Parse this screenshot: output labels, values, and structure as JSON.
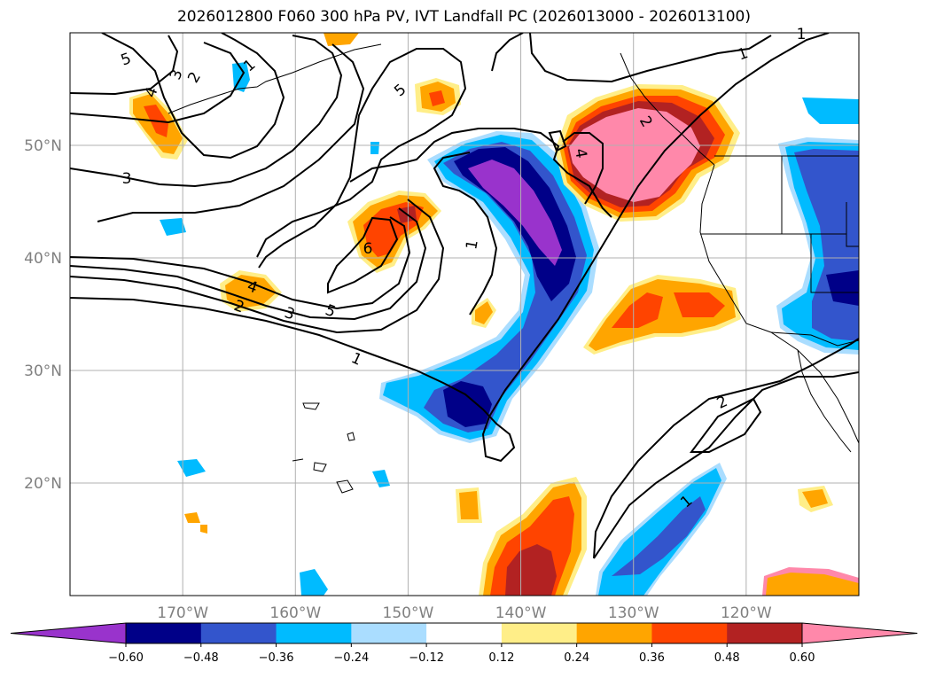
{
  "title": "2026012800 F060 300 hPa PV, IVT Landfall PC (2026013000 - 2026013100)",
  "chart_data": {
    "type": "contour_map",
    "projection": "map, longitude/latitude",
    "xlim": [
      -180,
      -110
    ],
    "ylim": [
      10,
      60
    ],
    "grid": true,
    "x_ticks": [
      {
        "value": -170,
        "label": "170°W"
      },
      {
        "value": -160,
        "label": "160°W"
      },
      {
        "value": -150,
        "label": "150°W"
      },
      {
        "value": -140,
        "label": "140°W"
      },
      {
        "value": -130,
        "label": "130°W"
      },
      {
        "value": -120,
        "label": "120°W"
      }
    ],
    "y_ticks": [
      {
        "value": 20,
        "label": "20°N"
      },
      {
        "value": 30,
        "label": "30°N"
      },
      {
        "value": 40,
        "label": "40°N"
      },
      {
        "value": 50,
        "label": "50°N"
      }
    ],
    "colorbar": {
      "extend": "both",
      "ticks": [
        "−0.60",
        "−0.48",
        "−0.36",
        "−0.24",
        "−0.12",
        "0.12",
        "0.24",
        "0.36",
        "0.48",
        "0.60"
      ],
      "bins": [
        {
          "range": "< −0.60",
          "color": "#9933cc"
        },
        {
          "range": "−0.60 to −0.48",
          "color": "#000088"
        },
        {
          "range": "−0.48 to −0.36",
          "color": "#3355cc"
        },
        {
          "range": "−0.36 to −0.24",
          "color": "#00bbff"
        },
        {
          "range": "−0.24 to −0.12",
          "color": "#aaddff"
        },
        {
          "range": "−0.12 to 0.12",
          "color": "#ffffff"
        },
        {
          "range": "0.12 to 0.24",
          "color": "#ffee88"
        },
        {
          "range": "0.24 to 0.36",
          "color": "#ffa500"
        },
        {
          "range": "0.36 to 0.48",
          "color": "#ff4400"
        },
        {
          "range": "0.48 to 0.60",
          "color": "#b22222"
        },
        {
          "range": "> 0.60",
          "color": "#ff88aa"
        }
      ]
    },
    "contour_labels": [
      "5",
      "4",
      "3",
      "2",
      "1",
      "1",
      "5",
      "3",
      "4",
      "6",
      "1",
      "4",
      "2",
      "3",
      "5",
      "1",
      "2",
      "1",
      "2",
      "1"
    ],
    "shaded_regions": [
      {
        "sign": "negative",
        "min_value": -0.6,
        "area": "Gulf of Alaska to 23°N 145°W band"
      },
      {
        "sign": "positive",
        "max_value": 0.6,
        "area": "off British Columbia ~48°N 130°W"
      },
      {
        "sign": "negative",
        "min_value": -0.48,
        "area": "interior western US ~38–48°N 113°W"
      },
      {
        "sign": "positive",
        "max_value": 0.48,
        "area": "off California ~35°N 128°W"
      }
    ]
  }
}
